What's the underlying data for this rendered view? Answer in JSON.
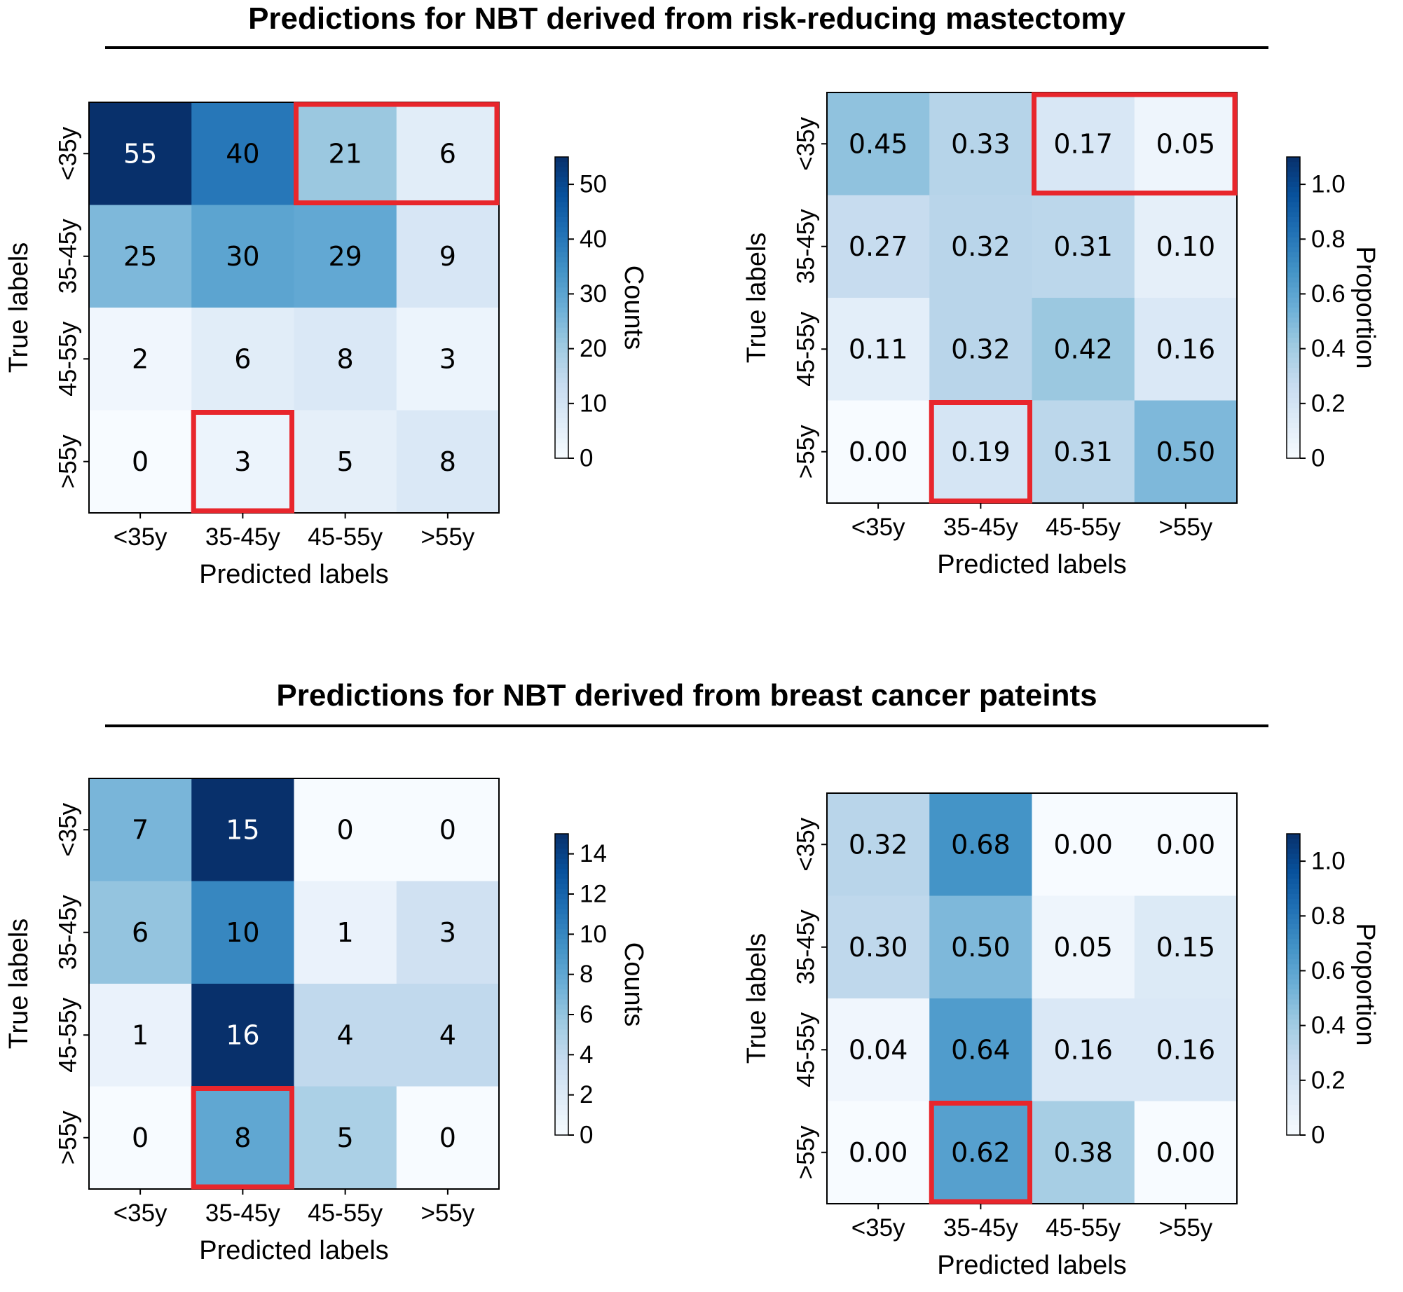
{
  "sections": [
    {
      "title": "Predictions for NBT derived from risk-reducing mastectomy"
    },
    {
      "title": "Predictions for NBT derived from breast cancer pateints"
    }
  ],
  "colors": {
    "highlight": "#e8262c",
    "cmap": "Blues"
  },
  "chart_data": [
    {
      "type": "heatmap",
      "xlabel": "Predicted labels",
      "ylabel": "True labels",
      "categories": [
        "<35y",
        "35-45y",
        "45-55y",
        ">55y"
      ],
      "rows": [
        "<35y",
        "35-45y",
        "45-55y",
        ">55y"
      ],
      "values": [
        [
          55,
          40,
          21,
          6
        ],
        [
          25,
          30,
          29,
          9
        ],
        [
          2,
          6,
          8,
          3
        ],
        [
          0,
          3,
          5,
          8
        ]
      ],
      "value_labels": [
        [
          "55",
          "40",
          "21",
          "6"
        ],
        [
          "25",
          "30",
          "29",
          "9"
        ],
        [
          "2",
          "6",
          "8",
          "3"
        ],
        [
          "0",
          "3",
          "5",
          "8"
        ]
      ],
      "colorbar": {
        "label": "Counts",
        "range": [
          0,
          55
        ],
        "ticks": [
          0,
          10,
          20,
          30,
          40,
          50
        ]
      },
      "highlights": [
        {
          "row": 0,
          "col": 2,
          "cols": 2
        },
        {
          "row": 3,
          "col": 1,
          "cols": 1
        }
      ]
    },
    {
      "type": "heatmap",
      "xlabel": "Predicted labels",
      "ylabel": "True labels",
      "categories": [
        "<35y",
        "35-45y",
        "45-55y",
        ">55y"
      ],
      "rows": [
        "<35y",
        "35-45y",
        "45-55y",
        ">55y"
      ],
      "values": [
        [
          0.45,
          0.33,
          0.17,
          0.05
        ],
        [
          0.27,
          0.32,
          0.31,
          0.1
        ],
        [
          0.11,
          0.32,
          0.42,
          0.16
        ],
        [
          0.0,
          0.19,
          0.31,
          0.5
        ]
      ],
      "value_labels": [
        [
          "0.45",
          "0.33",
          "0.17",
          "0.05"
        ],
        [
          "0.27",
          "0.32",
          "0.31",
          "0.10"
        ],
        [
          "0.11",
          "0.32",
          "0.42",
          "0.16"
        ],
        [
          "0.00",
          "0.19",
          "0.31",
          "0.50"
        ]
      ],
      "colorbar": {
        "label": "Proportion",
        "range": [
          0,
          1.1
        ],
        "ticks": [
          "0",
          "0.2",
          "0.4",
          "0.6",
          "0.8",
          "1.0"
        ]
      },
      "highlights": [
        {
          "row": 0,
          "col": 2,
          "cols": 2
        },
        {
          "row": 3,
          "col": 1,
          "cols": 1
        }
      ]
    },
    {
      "type": "heatmap",
      "xlabel": "Predicted labels",
      "ylabel": "True labels",
      "categories": [
        "<35y",
        "35-45y",
        "45-55y",
        ">55y"
      ],
      "rows": [
        "<35y",
        "35-45y",
        "45-55y",
        ">55y"
      ],
      "values": [
        [
          7,
          15,
          0,
          0
        ],
        [
          6,
          10,
          1,
          3
        ],
        [
          1,
          16,
          4,
          4
        ],
        [
          0,
          8,
          5,
          0
        ]
      ],
      "value_labels": [
        [
          "7",
          "15",
          "0",
          "0"
        ],
        [
          "6",
          "10",
          "1",
          "3"
        ],
        [
          "1",
          "16",
          "4",
          "4"
        ],
        [
          "0",
          "8",
          "5",
          "0"
        ]
      ],
      "colorbar": {
        "label": "Counts",
        "range": [
          0,
          15
        ],
        "ticks": [
          0,
          2,
          4,
          6,
          8,
          10,
          12,
          14
        ]
      },
      "highlights": [
        {
          "row": 3,
          "col": 1,
          "cols": 1
        }
      ]
    },
    {
      "type": "heatmap",
      "xlabel": "Predicted labels",
      "ylabel": "True labels",
      "categories": [
        "<35y",
        "35-45y",
        "45-55y",
        ">55y"
      ],
      "rows": [
        "<35y",
        "35-45y",
        "45-55y",
        ">55y"
      ],
      "values": [
        [
          0.32,
          0.68,
          0.0,
          0.0
        ],
        [
          0.3,
          0.5,
          0.05,
          0.15
        ],
        [
          0.04,
          0.64,
          0.16,
          0.16
        ],
        [
          0.0,
          0.62,
          0.38,
          0.0
        ]
      ],
      "value_labels": [
        [
          "0.32",
          "0.68",
          "0.00",
          "0.00"
        ],
        [
          "0.30",
          "0.50",
          "0.05",
          "0.15"
        ],
        [
          "0.04",
          "0.64",
          "0.16",
          "0.16"
        ],
        [
          "0.00",
          "0.62",
          "0.38",
          "0.00"
        ]
      ],
      "colorbar": {
        "label": "Proportion",
        "range": [
          0,
          1.1
        ],
        "ticks": [
          "0",
          "0.2",
          "0.4",
          "0.6",
          "0.8",
          "1.0"
        ]
      },
      "highlights": [
        {
          "row": 3,
          "col": 1,
          "cols": 1
        }
      ]
    }
  ]
}
